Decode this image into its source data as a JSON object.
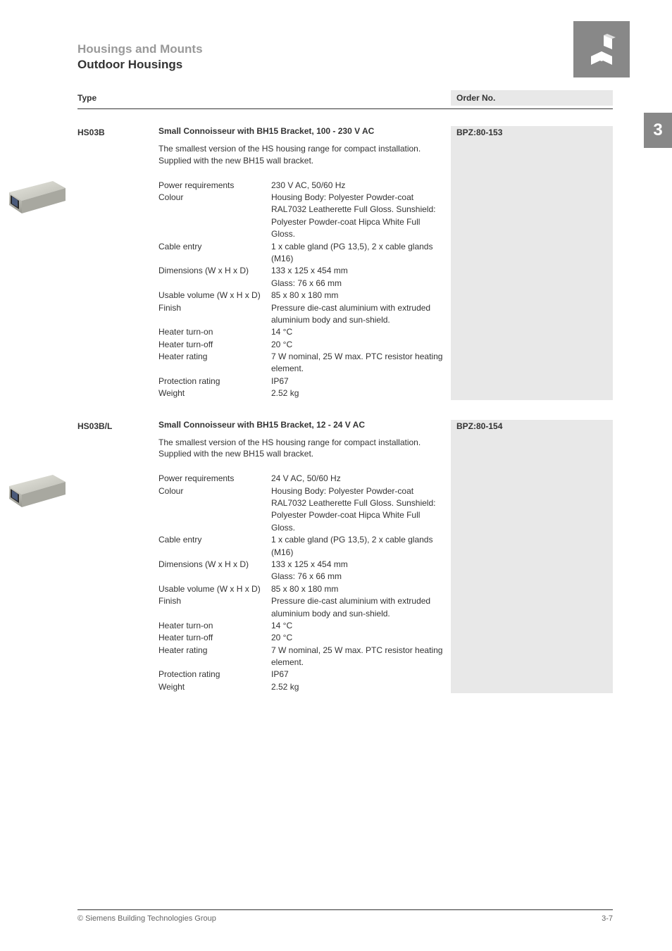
{
  "header": {
    "breadcrumb": "Housings and Mounts",
    "title": "Outdoor Housings"
  },
  "sideTab": "3",
  "columns": {
    "type": "Type",
    "order": "Order No."
  },
  "products": [
    {
      "type": "HS03B",
      "title": "Small Connoisseur with BH15 Bracket, 100 - 230 V AC",
      "order": "BPZ:80-153",
      "desc": "The smallest version of the HS housing range for compact installation. Supplied with the new BH15 wall bracket.",
      "specs": [
        {
          "label": "Power requirements",
          "value": "230 V AC, 50/60 Hz"
        },
        {
          "label": "Colour",
          "value": "Housing Body: Polyester Powder-coat RAL7032 Leatherette Full Gloss. Sunshield: Polyester Powder-coat Hipca White Full Gloss."
        },
        {
          "label": "Cable entry",
          "value": "1 x cable gland (PG 13,5), 2 x cable glands (M16)"
        },
        {
          "label": "Dimensions (W x H x D)",
          "value": "133 x 125 x 454 mm\nGlass: 76 x 66 mm"
        },
        {
          "label": "Usable volume (W x H x D)",
          "value": "85 x 80 x 180 mm"
        },
        {
          "label": "Finish",
          "value": "Pressure die-cast aluminium with extruded aluminium body and sun-shield."
        },
        {
          "label": "Heater turn-on",
          "value": "14 °C"
        },
        {
          "label": "Heater turn-off",
          "value": "20 °C"
        },
        {
          "label": "Heater rating",
          "value": "7 W nominal, 25 W max. PTC resistor heating element."
        },
        {
          "label": "Protection rating",
          "value": "IP67"
        },
        {
          "label": "Weight",
          "value": "2.52 kg"
        }
      ]
    },
    {
      "type": "HS03B/L",
      "title": "Small Connoisseur with BH15 Bracket,  12 - 24 V AC",
      "order": "BPZ:80-154",
      "desc": "The smallest version of the HS housing range for compact installation. Supplied with the new BH15 wall bracket.",
      "specs": [
        {
          "label": "Power requirements",
          "value": "24 V AC, 50/60 Hz"
        },
        {
          "label": "Colour",
          "value": "Housing Body: Polyester Powder-coat RAL7032 Leatherette Full Gloss. Sunshield: Polyester Powder-coat Hipca White Full Gloss."
        },
        {
          "label": "Cable entry",
          "value": "1 x cable gland (PG 13,5), 2 x cable glands (M16)"
        },
        {
          "label": "Dimensions (W x H x D)",
          "value": "133 x 125 x 454 mm\nGlass: 76 x 66 mm"
        },
        {
          "label": "Usable volume (W x H x D)",
          "value": "85 x 80 x 180 mm"
        },
        {
          "label": "Finish",
          "value": "Pressure die-cast aluminium with extruded aluminium body and sun-shield."
        },
        {
          "label": "Heater turn-on",
          "value": "14 °C"
        },
        {
          "label": "Heater turn-off",
          "value": "20 °C"
        },
        {
          "label": "Heater rating",
          "value": "7 W nominal, 25 W max. PTC resistor heating element."
        },
        {
          "label": "Protection rating",
          "value": "IP67"
        },
        {
          "label": "Weight",
          "value": "2.52 kg"
        }
      ]
    }
  ],
  "footer": {
    "copyright": "© Siemens Building Technologies Group",
    "pageNum": "3-7"
  },
  "colors": {
    "background": "#ffffff",
    "text": "#333333",
    "muted": "#999999",
    "shade": "#e8e8e8",
    "tab": "#888888"
  }
}
